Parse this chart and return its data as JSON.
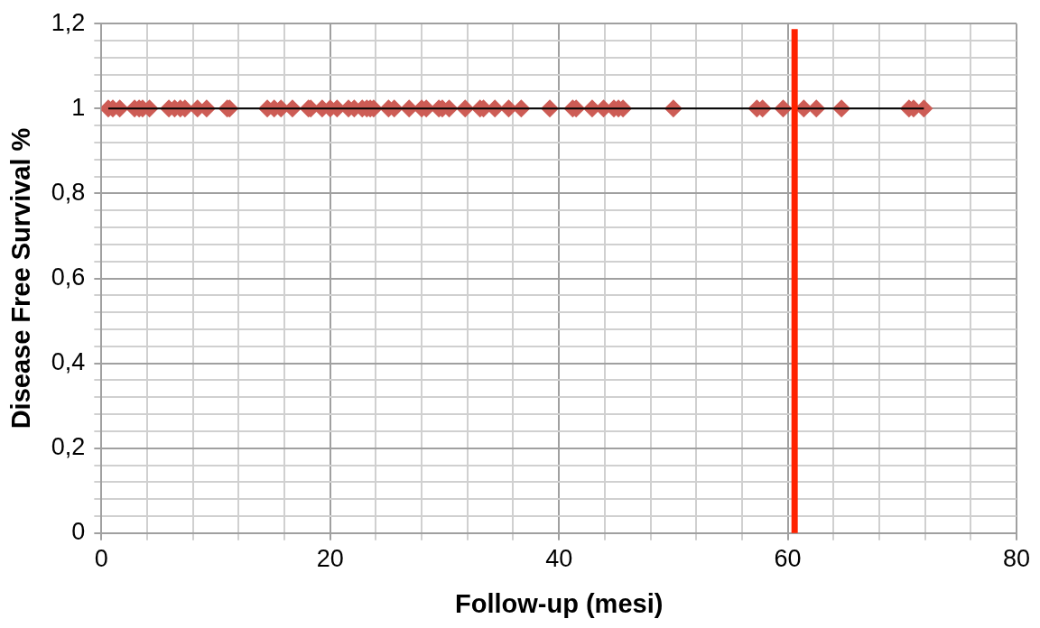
{
  "chart_data": {
    "type": "scatter",
    "xlabel": "Follow-up (mesi)",
    "ylabel": "Disease Free Survival %",
    "xlim": [
      0,
      80
    ],
    "ylim": [
      0,
      1.2
    ],
    "xticks": [
      0,
      {
        "value": 4,
        "label": null
      },
      {
        "value": 8,
        "label": null
      },
      {
        "value": 12,
        "label": null
      },
      {
        "value": 16,
        "label": null
      },
      20,
      {
        "value": 24,
        "label": null
      },
      {
        "value": 28,
        "label": null
      },
      {
        "value": 32,
        "label": null
      },
      {
        "value": 36,
        "label": null
      },
      40,
      {
        "value": 44,
        "label": null
      },
      {
        "value": 48,
        "label": null
      },
      {
        "value": 52,
        "label": null
      },
      {
        "value": 56,
        "label": null
      },
      60,
      {
        "value": 64,
        "label": null
      },
      {
        "value": 68,
        "label": null
      },
      {
        "value": 72,
        "label": null
      },
      {
        "value": 76,
        "label": null
      },
      80
    ],
    "yticks": [
      {
        "value": 0,
        "label": "0"
      },
      {
        "value": 0.04,
        "label": null
      },
      {
        "value": 0.08,
        "label": null
      },
      {
        "value": 0.12,
        "label": null
      },
      {
        "value": 0.16,
        "label": null
      },
      {
        "value": 0.2,
        "label": "0,2"
      },
      {
        "value": 0.24,
        "label": null
      },
      {
        "value": 0.28,
        "label": null
      },
      {
        "value": 0.32,
        "label": null
      },
      {
        "value": 0.36,
        "label": null
      },
      {
        "value": 0.4,
        "label": "0,4"
      },
      {
        "value": 0.44,
        "label": null
      },
      {
        "value": 0.48,
        "label": null
      },
      {
        "value": 0.52,
        "label": null
      },
      {
        "value": 0.56,
        "label": null
      },
      {
        "value": 0.6,
        "label": "0,6"
      },
      {
        "value": 0.64,
        "label": null
      },
      {
        "value": 0.68,
        "label": null
      },
      {
        "value": 0.72,
        "label": null
      },
      {
        "value": 0.76,
        "label": null
      },
      {
        "value": 0.8,
        "label": "0,8"
      },
      {
        "value": 0.84,
        "label": null
      },
      {
        "value": 0.88,
        "label": null
      },
      {
        "value": 0.92,
        "label": null
      },
      {
        "value": 0.96,
        "label": null
      },
      {
        "value": 1,
        "label": "1"
      },
      {
        "value": 1.04,
        "label": null
      },
      {
        "value": 1.08,
        "label": null
      },
      {
        "value": 1.12,
        "label": null
      },
      {
        "value": 1.16,
        "label": null
      },
      {
        "value": 1.2,
        "label": "1,2"
      }
    ],
    "grid": true,
    "legend": false,
    "marker": "diamond",
    "series": [
      {
        "type": "line",
        "color": "#000000",
        "marker": "none",
        "x": [
          0.6,
          71.9
        ],
        "values": [
          1,
          1
        ]
      },
      {
        "color": "#cd5c55",
        "x": [
          0.6,
          1.0,
          1.6,
          2.9,
          3.3,
          3.6,
          4.2,
          5.9,
          6.4,
          6.9,
          7.3,
          8.4,
          9.2,
          11.0,
          11.2,
          14.5,
          15.1,
          15.7,
          16.7,
          18.1,
          18.3,
          19.3,
          20.0,
          20.6,
          21.6,
          22.1,
          22.8,
          23.2,
          23.5,
          23.8,
          25.1,
          25.6,
          26.9,
          28.0,
          28.4,
          29.5,
          29.8,
          30.4,
          31.8,
          33.1,
          33.4,
          34.4,
          35.6,
          36.7,
          39.2,
          41.2,
          41.5,
          42.9,
          43.9,
          44.8,
          45.2,
          45.6,
          50.0,
          57.3,
          57.8,
          59.6,
          61.4,
          62.5,
          64.7,
          70.6,
          71.0,
          71.9
        ],
        "values": [
          1,
          1,
          1,
          1,
          1,
          1,
          1,
          1,
          1,
          1,
          1,
          1,
          1,
          1,
          1,
          1,
          1,
          1,
          1,
          1,
          1,
          1,
          1,
          1,
          1,
          1,
          1,
          1,
          1,
          1,
          1,
          1,
          1,
          1,
          1,
          1,
          1,
          1,
          1,
          1,
          1,
          1,
          1,
          1,
          1,
          1,
          1,
          1,
          1,
          1,
          1,
          1,
          1,
          1,
          1,
          1,
          1,
          1,
          1,
          1,
          1,
          1
        ]
      }
    ],
    "ref_lines": [
      {
        "axis": "x",
        "value": 60.6,
        "color": "#ff2200"
      }
    ]
  }
}
